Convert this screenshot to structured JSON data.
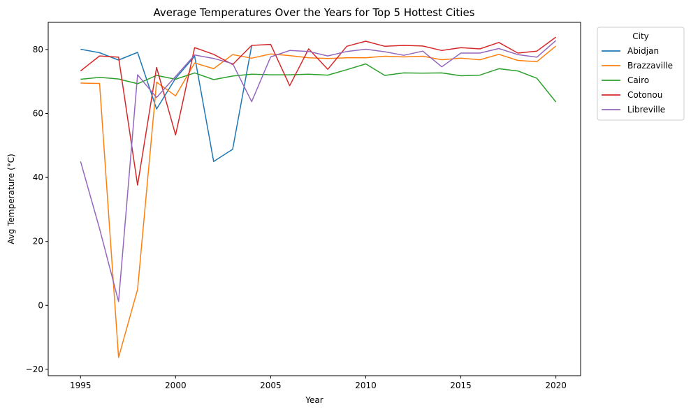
{
  "chart_data": {
    "type": "line",
    "title": "Average Temperatures Over the Years for Top 5 Hottest Cities",
    "xlabel": "Year",
    "ylabel": "Avg Temperature (°C)",
    "xlim": [
      1993.3,
      2021.3
    ],
    "ylim": [
      -22,
      88.5
    ],
    "xticks": [
      1995,
      2000,
      2005,
      2010,
      2015,
      2020
    ],
    "yticks": [
      -20,
      0,
      20,
      40,
      60,
      80
    ],
    "grid": false,
    "legend": {
      "title": "City",
      "placement": "outside-top-right"
    },
    "x": [
      1995,
      1996,
      1997,
      1998,
      1999,
      2000,
      2001,
      2002,
      2003,
      2004,
      2005,
      2006,
      2007,
      2008,
      2009,
      2010,
      2011,
      2012,
      2013,
      2014,
      2015,
      2016,
      2017,
      2018,
      2019,
      2020
    ],
    "series": [
      {
        "name": "Abidjan",
        "color": "#1f77b4",
        "values": [
          80.1,
          79.0,
          76.7,
          79.1,
          61.4,
          71.0,
          77.9,
          45.0,
          48.8,
          81.2,
          null,
          null,
          null,
          null,
          null,
          null,
          null,
          null,
          null,
          null,
          null,
          null,
          null,
          null,
          null,
          null
        ]
      },
      {
        "name": "Brazzaville",
        "color": "#ff7f0e",
        "values": [
          69.5,
          69.4,
          -16.3,
          5.0,
          69.8,
          65.5,
          75.8,
          74.0,
          78.4,
          77.3,
          78.6,
          78.1,
          77.4,
          77.2,
          77.4,
          77.4,
          77.9,
          77.7,
          77.9,
          76.8,
          77.3,
          76.8,
          78.5,
          76.6,
          76.2,
          81.1
        ]
      },
      {
        "name": "Cairo",
        "color": "#2ca02c",
        "values": [
          70.7,
          71.3,
          70.8,
          69.3,
          71.9,
          70.7,
          72.7,
          70.6,
          71.7,
          72.3,
          72.1,
          72.1,
          72.3,
          72.0,
          73.7,
          75.5,
          71.9,
          72.7,
          72.6,
          72.7,
          71.8,
          72.0,
          74.0,
          73.3,
          71.0,
          63.6
        ]
      },
      {
        "name": "Cotonou",
        "color": "#d62728",
        "values": [
          73.3,
          78.0,
          77.6,
          37.6,
          74.4,
          53.3,
          80.6,
          78.5,
          75.3,
          81.3,
          81.6,
          68.7,
          80.2,
          73.8,
          81.0,
          82.6,
          81.0,
          81.3,
          81.1,
          79.7,
          80.6,
          80.2,
          82.2,
          78.9,
          79.5,
          83.9
        ]
      },
      {
        "name": "Libreville",
        "color": "#9467bd",
        "values": [
          45.0,
          24.0,
          1.2,
          72.1,
          65.0,
          71.6,
          78.3,
          77.2,
          75.6,
          63.7,
          77.7,
          79.7,
          79.4,
          78.0,
          79.4,
          80.1,
          79.3,
          78.2,
          79.5,
          74.6,
          78.9,
          78.9,
          80.3,
          78.4,
          77.6,
          82.8
        ]
      }
    ]
  }
}
